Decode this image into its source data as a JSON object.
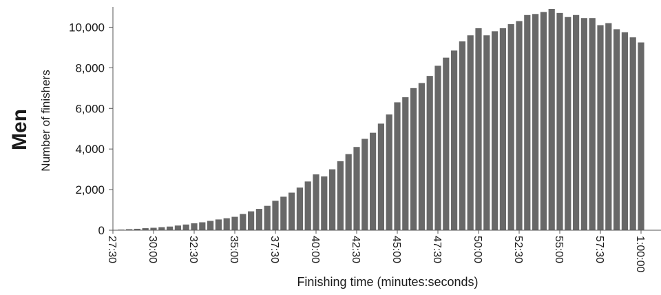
{
  "panel_label": "Men",
  "chart_data": {
    "type": "bar",
    "title": "",
    "xlabel": "Finishing time (minutes:seconds)",
    "ylabel": "Number of finishers",
    "ylim": [
      0,
      11000
    ],
    "y_ticks": [
      0,
      2000,
      4000,
      6000,
      8000,
      10000
    ],
    "y_tick_labels": [
      "0",
      "2,000",
      "4,000",
      "6,000",
      "8,000",
      "10,000"
    ],
    "x_tick_labels": [
      "27:30",
      "30:00",
      "32:30",
      "35:00",
      "37:30",
      "40:00",
      "42:30",
      "45:00",
      "47:30",
      "50:00",
      "52:30",
      "55:00",
      "57:30",
      "1:00:00"
    ],
    "x_tick_minutes": [
      27.5,
      30,
      32.5,
      35,
      37.5,
      40,
      42.5,
      45,
      47.5,
      50,
      52.5,
      55,
      57.5,
      60
    ],
    "bin_width_minutes": 0.5,
    "bin_start_minutes": [
      28.0,
      28.5,
      29.0,
      29.5,
      30.0,
      30.5,
      31.0,
      31.5,
      32.0,
      32.5,
      33.0,
      33.5,
      34.0,
      34.5,
      35.0,
      35.5,
      36.0,
      36.5,
      37.0,
      37.5,
      38.0,
      38.5,
      39.0,
      39.5,
      40.0,
      40.5,
      41.0,
      41.5,
      42.0,
      42.5,
      43.0,
      43.5,
      44.0,
      44.5,
      45.0,
      45.5,
      46.0,
      46.5,
      47.0,
      47.5,
      48.0,
      48.5,
      49.0,
      49.5,
      50.0,
      50.5,
      51.0,
      51.5,
      52.0,
      52.5,
      53.0,
      53.5,
      54.0,
      54.5,
      55.0,
      55.5,
      56.0,
      56.5,
      57.0,
      57.5,
      58.0,
      58.5,
      59.0,
      59.5,
      60.0
    ],
    "values": [
      30,
      50,
      70,
      100,
      120,
      150,
      180,
      230,
      280,
      340,
      390,
      460,
      530,
      590,
      660,
      800,
      930,
      1050,
      1200,
      1450,
      1650,
      1850,
      2100,
      2400,
      2750,
      2650,
      3000,
      3400,
      3750,
      4100,
      4500,
      4800,
      5250,
      5700,
      6300,
      6550,
      7000,
      7250,
      7600,
      8100,
      8500,
      8850,
      9300,
      9600,
      9950,
      9600,
      9800,
      9950,
      10150,
      10300,
      10600,
      10650,
      10750,
      10900,
      10700,
      10500,
      10600,
      10450,
      10450,
      10100,
      10200,
      9900,
      9750,
      9500,
      9250
    ],
    "bar_color": "#686868",
    "grid": false,
    "legend": "none"
  }
}
